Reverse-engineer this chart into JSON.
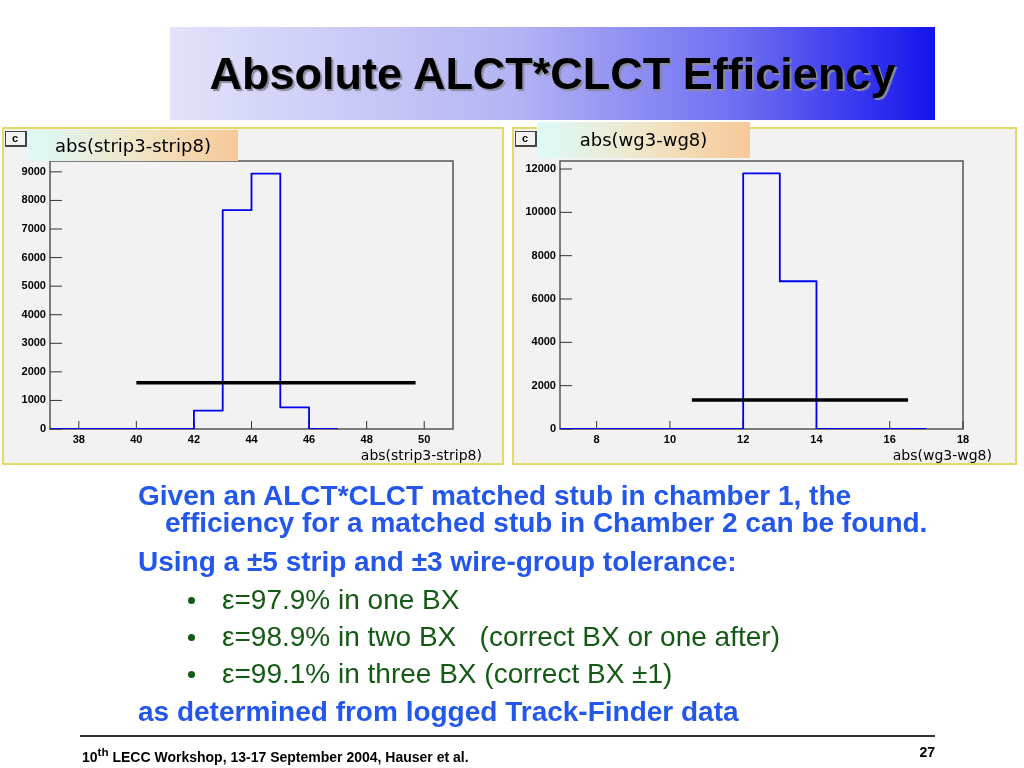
{
  "chart_data": [
    {
      "type": "other",
      "title": "Absolute ALCT*CLCT Efficiency"
    },
    {
      "type": "step",
      "title": "abs(strip3-strip8)",
      "xlabel": "abs(strip3-strip8)",
      "annotations": [
        "c"
      ],
      "series": [
        {
          "color": "#0000ee",
          "x": [
            37,
            38,
            39,
            40,
            41,
            42,
            43,
            44,
            45,
            46,
            47
          ],
          "values": [
            0,
            0,
            0,
            0,
            0,
            640,
            7660,
            8940,
            760,
            0,
            0
          ]
        },
        {
          "type": "line",
          "color": "#000000",
          "x": [
            40,
            49.7
          ],
          "values": [
            1620,
            1620
          ]
        }
      ],
      "xlim": [
        37,
        51
      ],
      "ylim": [
        0,
        9380
      ],
      "xticks": [
        38,
        40,
        42,
        44,
        46,
        48,
        50
      ],
      "yticks": [
        0,
        1000,
        2000,
        3000,
        4000,
        5000,
        6000,
        7000,
        8000,
        9000
      ]
    },
    {
      "type": "step",
      "title": "abs(wg3-wg8)",
      "xlabel": "abs(wg3-wg8)",
      "annotations": [
        "c"
      ],
      "series": [
        {
          "color": "#0000ee",
          "x": [
            7,
            8,
            9,
            10,
            11,
            12,
            13,
            14,
            15,
            16,
            17
          ],
          "values": [
            0,
            0,
            0,
            0,
            0,
            11800,
            6820,
            0,
            0,
            0,
            0
          ]
        },
        {
          "type": "line",
          "color": "#000000",
          "x": [
            10.6,
            16.5
          ],
          "values": [
            1340,
            1340
          ]
        }
      ],
      "xlim": [
        7,
        18
      ],
      "ylim": [
        0,
        12370
      ],
      "xticks": [
        8,
        10,
        12,
        14,
        16,
        18
      ],
      "yticks": [
        0,
        2000,
        4000,
        6000,
        8000,
        10000,
        12000
      ]
    },
    {
      "type": "other",
      "annotations": [
        "Given an ALCT*CLCT matched stub in chamber 1, the efficiency for a matched stub in Chamber 2 can be found.",
        "Using a ±5 strip and ±3 wire-group tolerance:",
        "ε=97.9% in one BX",
        "ε=98.9% in two BX   (correct BX or one after)",
        "ε=99.1% in three BX (correct BX ±1)",
        "as determined from logged Track-Finder data",
        "10$^{th}$ LECC Workshop, 13-17 September 2004, Hauser et al.",
        "27"
      ]
    }
  ]
}
